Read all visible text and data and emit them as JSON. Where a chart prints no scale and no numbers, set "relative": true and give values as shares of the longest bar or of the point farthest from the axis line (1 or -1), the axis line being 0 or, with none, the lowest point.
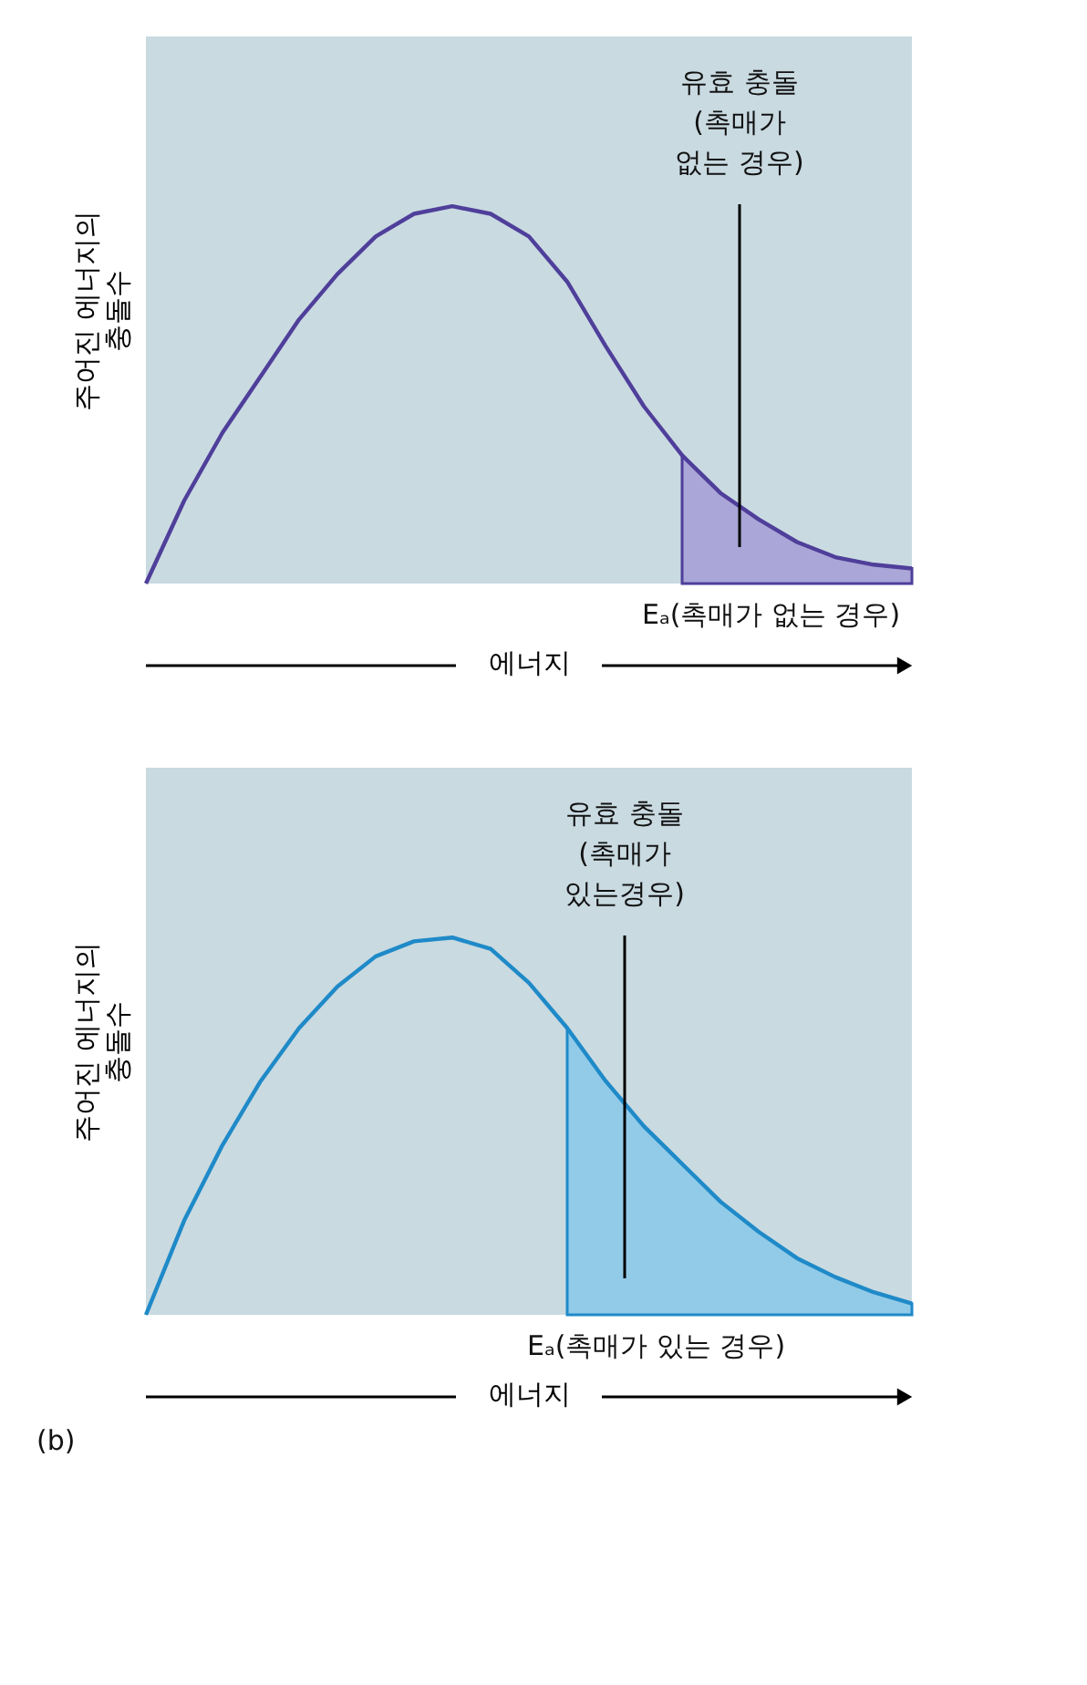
{
  "chart_data": [
    {
      "type": "line",
      "relative": true,
      "ylabel": "주어진 에너지의\n충돌수",
      "xlabel": "에너지",
      "categories": [
        null,
        null,
        null,
        null,
        null,
        null,
        null,
        null,
        null,
        null,
        null,
        null,
        null,
        null,
        null,
        null,
        null,
        null,
        null,
        null,
        null
      ],
      "annotations": [
        "유효 충돌\n(촉매가\n없는 경우)",
        "Eₐ(촉매가 없는 경우)"
      ],
      "series": [
        {
          "type": "area",
          "color": "#aaa6d8",
          "values": [
            null,
            null,
            null,
            null,
            null,
            null,
            null,
            null,
            null,
            null,
            null,
            null,
            null,
            null,
            0.34,
            0.24,
            0.17,
            0.11,
            0.07,
            0.05,
            0.04
          ]
        },
        {
          "color": "#4f3f9a",
          "values": [
            0,
            0.22,
            0.4,
            0.55,
            0.7,
            0.82,
            0.92,
            0.98,
            1.0,
            0.98,
            0.92,
            0.8,
            0.63,
            0.47,
            0.34,
            0.24,
            0.17,
            0.11,
            0.07,
            0.05,
            0.04
          ]
        }
      ]
    },
    {
      "type": "line",
      "relative": true,
      "ylabel": "주어진 에너지의\n충돌수",
      "xlabel": "에너지",
      "categories": [
        null,
        null,
        null,
        null,
        null,
        null,
        null,
        null,
        null,
        null,
        null,
        null,
        null,
        null,
        null,
        null,
        null,
        null,
        null,
        null,
        null
      ],
      "annotations": [
        "유효 충돌\n(촉매가\n있는경우)",
        "Eₐ(촉매가 있는 경우)",
        "(b)"
      ],
      "series": [
        {
          "type": "area",
          "color": "#92cbe8",
          "values": [
            null,
            null,
            null,
            null,
            null,
            null,
            null,
            null,
            null,
            null,
            null,
            0.76,
            0.62,
            0.5,
            0.4,
            0.3,
            0.22,
            0.15,
            0.1,
            0.06,
            0.03
          ]
        },
        {
          "color": "#1f8ac8",
          "values": [
            0,
            0.25,
            0.45,
            0.62,
            0.76,
            0.87,
            0.95,
            0.99,
            1.0,
            0.97,
            0.88,
            0.76,
            0.62,
            0.5,
            0.4,
            0.3,
            0.22,
            0.15,
            0.1,
            0.06,
            0.03
          ]
        }
      ]
    }
  ]
}
